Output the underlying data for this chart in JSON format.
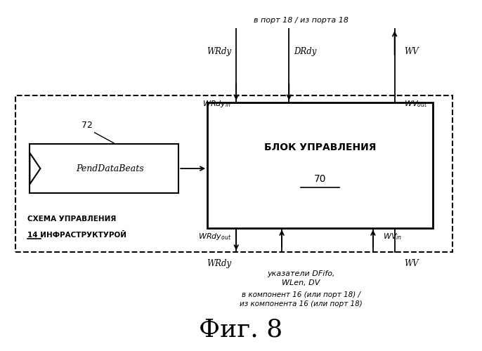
{
  "bg_color": "#ffffff",
  "title": "Фиг. 8",
  "title_fontsize": 26,
  "top_label": "в порт 18 / из порта 18",
  "bottom_label1": "в компонент 16 (или порт 18) /",
  "bottom_label2": "из компонента 16 (или порт 18)",
  "indicators_label1": "указатели DFifo,",
  "indicators_label2": "WLen, DV",
  "infra_label1": "СХЕМА УПРАВЛЕНИЯ",
  "infra_label2": "14 ИНФРАСТРУКТУРОЙ",
  "control_label1": "БЛОК УПРАВЛЕНИЯ",
  "control_label2": "70",
  "pend_label": "PendDataBeats",
  "pend_ref": "72"
}
